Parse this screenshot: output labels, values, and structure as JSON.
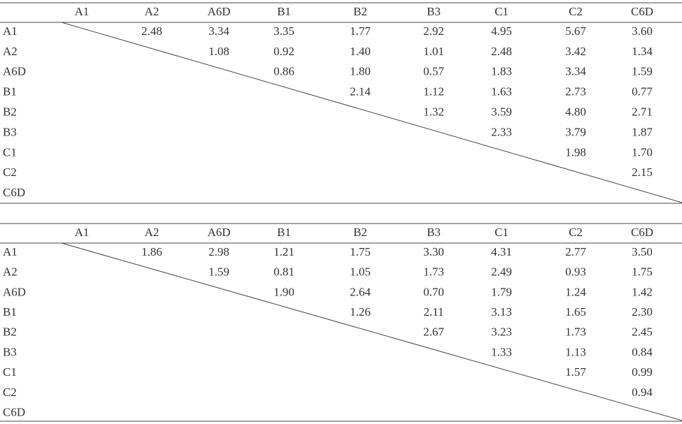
{
  "tables": [
    {
      "columns": [
        "A1",
        "A2",
        "A6D",
        "B1",
        "B2",
        "B3",
        "C1",
        "C2",
        "C6D"
      ],
      "rows": [
        {
          "label": "A1",
          "cells": [
            "2.48",
            "3.34",
            "3.35",
            "1.77",
            "2.92",
            "4.95",
            "5.67",
            "3.60"
          ]
        },
        {
          "label": "A2",
          "cells": [
            "1.08",
            "0.92",
            "1.40",
            "1.01",
            "2.48",
            "3.42",
            "1.34"
          ]
        },
        {
          "label": "A6D",
          "cells": [
            "0.86",
            "1.80",
            "0.57",
            "1.83",
            "3.34",
            "1.59"
          ]
        },
        {
          "label": "B1",
          "cells": [
            "2.14",
            "1.12",
            "1.63",
            "2.73",
            "0.77"
          ]
        },
        {
          "label": "B2",
          "cells": [
            "1.32",
            "3.59",
            "4.80",
            "2.71"
          ]
        },
        {
          "label": "B3",
          "cells": [
            "2.33",
            "3.79",
            "1.87"
          ]
        },
        {
          "label": "C1",
          "cells": [
            "1.98",
            "1.70"
          ]
        },
        {
          "label": "C2",
          "cells": [
            "2.15"
          ]
        },
        {
          "label": "C6D",
          "cells": []
        }
      ]
    },
    {
      "columns": [
        "A1",
        "A2",
        "A6D",
        "B1",
        "B2",
        "B3",
        "C1",
        "C2",
        "C6D"
      ],
      "rows": [
        {
          "label": "A1",
          "cells": [
            "1.86",
            "2.98",
            "1.21",
            "1.75",
            "3.30",
            "4.31",
            "2.77",
            "3.50"
          ]
        },
        {
          "label": "A2",
          "cells": [
            "1.59",
            "0.81",
            "1.05",
            "1.73",
            "2.49",
            "0.93",
            "1.75"
          ]
        },
        {
          "label": "A6D",
          "cells": [
            "1.90",
            "2.64",
            "0.70",
            "1.79",
            "1.24",
            "1.42"
          ]
        },
        {
          "label": "B1",
          "cells": [
            "1.26",
            "2.11",
            "3.13",
            "1.65",
            "2.30"
          ]
        },
        {
          "label": "B2",
          "cells": [
            "2.67",
            "3.23",
            "1.73",
            "2.45"
          ]
        },
        {
          "label": "B3",
          "cells": [
            "1.33",
            "1.13",
            "0.84"
          ]
        },
        {
          "label": "C1",
          "cells": [
            "1.57",
            "0.99"
          ]
        },
        {
          "label": "C2",
          "cells": [
            "0.94"
          ]
        },
        {
          "label": "C6D",
          "cells": []
        }
      ]
    }
  ]
}
